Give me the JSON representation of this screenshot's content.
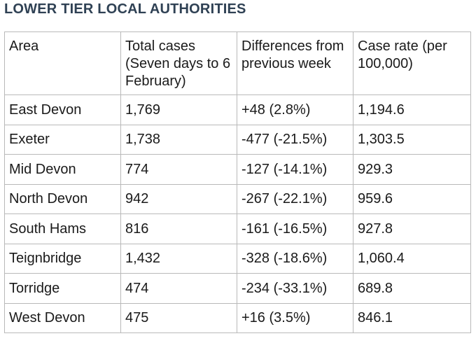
{
  "title": "LOWER TIER LOCAL AUTHORITIES",
  "table": {
    "headers": [
      "Area",
      "Total cases (Seven days to 6 February)",
      "Differences from previous week",
      "Case rate (per 100,000)"
    ],
    "rows": [
      [
        "East Devon",
        "1,769",
        "+48 (2.8%)",
        "1,194.6"
      ],
      [
        "Exeter",
        "1,738",
        "-477 (-21.5%)",
        "1,303.5"
      ],
      [
        "Mid Devon",
        "774",
        "-127 (-14.1%)",
        "929.3"
      ],
      [
        "North Devon",
        "942",
        "-267 (-22.1%)",
        "959.6"
      ],
      [
        "South Hams",
        "816",
        "-161 (-16.5%)",
        "927.8"
      ],
      [
        "Teignbridge",
        "1,432",
        "-328 (-18.6%)",
        "1,060.4"
      ],
      [
        "Torridge",
        "474",
        "-234 (-33.1%)",
        "689.8"
      ],
      [
        "West Devon",
        "475",
        "+16 (3.5%)",
        "846.1"
      ]
    ]
  },
  "colors": {
    "title": "#2f4154",
    "text": "#1a1a1a",
    "border": "#b9b9b9",
    "background": "#ffffff"
  }
}
